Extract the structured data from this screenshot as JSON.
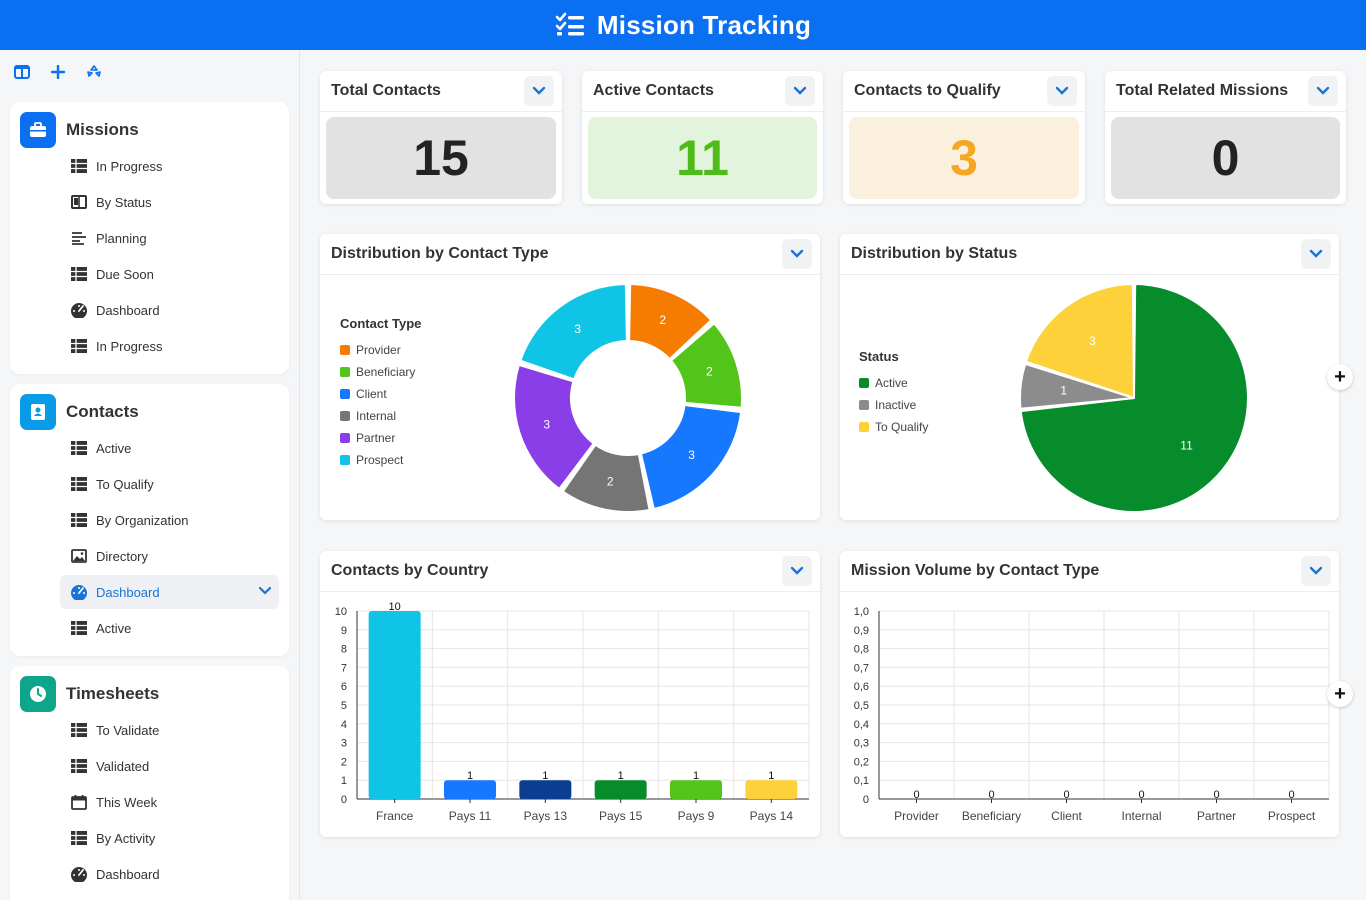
{
  "header": {
    "title": "Mission Tracking"
  },
  "sidebar": {
    "sections": [
      {
        "title": "Missions",
        "icon": "briefcase-icon",
        "color": "#0a6ff0",
        "items": [
          {
            "label": "In Progress",
            "icon": "table-icon"
          },
          {
            "label": "By Status",
            "icon": "kanban-icon"
          },
          {
            "label": "Planning",
            "icon": "gantt-icon"
          },
          {
            "label": "Due Soon",
            "icon": "table-icon"
          },
          {
            "label": "Dashboard",
            "icon": "gauge-icon"
          },
          {
            "label": "In Progress",
            "icon": "table-icon"
          }
        ]
      },
      {
        "title": "Contacts",
        "icon": "address-book-icon",
        "color": "#0a9be8",
        "items": [
          {
            "label": "Active",
            "icon": "table-icon"
          },
          {
            "label": "To Qualify",
            "icon": "table-icon"
          },
          {
            "label": "By Organization",
            "icon": "table-icon"
          },
          {
            "label": "Directory",
            "icon": "image-icon"
          },
          {
            "label": "Dashboard",
            "icon": "gauge-icon",
            "active": true
          },
          {
            "label": "Active",
            "icon": "table-icon"
          }
        ]
      },
      {
        "title": "Timesheets",
        "icon": "clock-icon",
        "color": "#0fa58a",
        "items": [
          {
            "label": "To Validate",
            "icon": "table-icon"
          },
          {
            "label": "Validated",
            "icon": "table-icon"
          },
          {
            "label": "This Week",
            "icon": "calendar-icon"
          },
          {
            "label": "By Activity",
            "icon": "table-icon"
          },
          {
            "label": "Dashboard",
            "icon": "gauge-icon"
          }
        ]
      }
    ]
  },
  "kpis": [
    {
      "title": "Total Contacts",
      "value": "15",
      "bg": "#e2e2e2",
      "color": "#222222"
    },
    {
      "title": "Active Contacts",
      "value": "11",
      "bg": "#e2f5dc",
      "color": "#4dbb19"
    },
    {
      "title": "Contacts to Qualify",
      "value": "3",
      "bg": "#fbf0dd",
      "color": "#f5a623"
    },
    {
      "title": "Total Related Missions",
      "value": "0",
      "bg": "#e2e2e2",
      "color": "#222222"
    }
  ],
  "charts": {
    "contact_type": {
      "title": "Distribution by Contact Type"
    },
    "status": {
      "title": "Distribution by Status"
    },
    "country": {
      "title": "Contacts by Country"
    },
    "mission_volume": {
      "title": "Mission Volume by Contact Type"
    }
  },
  "chart_data": [
    {
      "type": "pie",
      "variant": "donut",
      "legend_title": "Contact Type",
      "legend_position": "left",
      "categories": [
        "Provider",
        "Beneficiary",
        "Client",
        "Internal",
        "Partner",
        "Prospect"
      ],
      "values": [
        2,
        2,
        3,
        2,
        3,
        3
      ],
      "colors": [
        "#f57c00",
        "#52c41a",
        "#1677ff",
        "#757575",
        "#8a3ee8",
        "#10c4e6"
      ]
    },
    {
      "type": "pie",
      "legend_title": "Status",
      "legend_position": "left",
      "categories": [
        "Active",
        "Inactive",
        "To Qualify"
      ],
      "values": [
        11,
        1,
        3
      ],
      "colors": [
        "#078c2c",
        "#8c8c8c",
        "#fdd13a"
      ]
    },
    {
      "type": "bar",
      "categories": [
        "France",
        "Pays 11",
        "Pays 13",
        "Pays 15",
        "Pays 9",
        "Pays 14"
      ],
      "values": [
        10,
        1,
        1,
        1,
        1,
        1
      ],
      "colors": [
        "#10c4e6",
        "#1677ff",
        "#0b3d91",
        "#078c2c",
        "#52c41a",
        "#fdd13a"
      ],
      "ylim": [
        0,
        10
      ],
      "yticks": [
        "0",
        "1",
        "2",
        "3",
        "4",
        "5",
        "6",
        "7",
        "8",
        "9",
        "10"
      ],
      "grid": true
    },
    {
      "type": "bar",
      "categories": [
        "Provider",
        "Beneficiary",
        "Client",
        "Internal",
        "Partner",
        "Prospect"
      ],
      "values": [
        0,
        0,
        0,
        0,
        0,
        0
      ],
      "ylim": [
        0,
        1
      ],
      "yticks": [
        "0",
        "0,1",
        "0,2",
        "0,3",
        "0,4",
        "0,5",
        "0,6",
        "0,7",
        "0,8",
        "0,9",
        "1,0"
      ],
      "grid": true
    }
  ]
}
